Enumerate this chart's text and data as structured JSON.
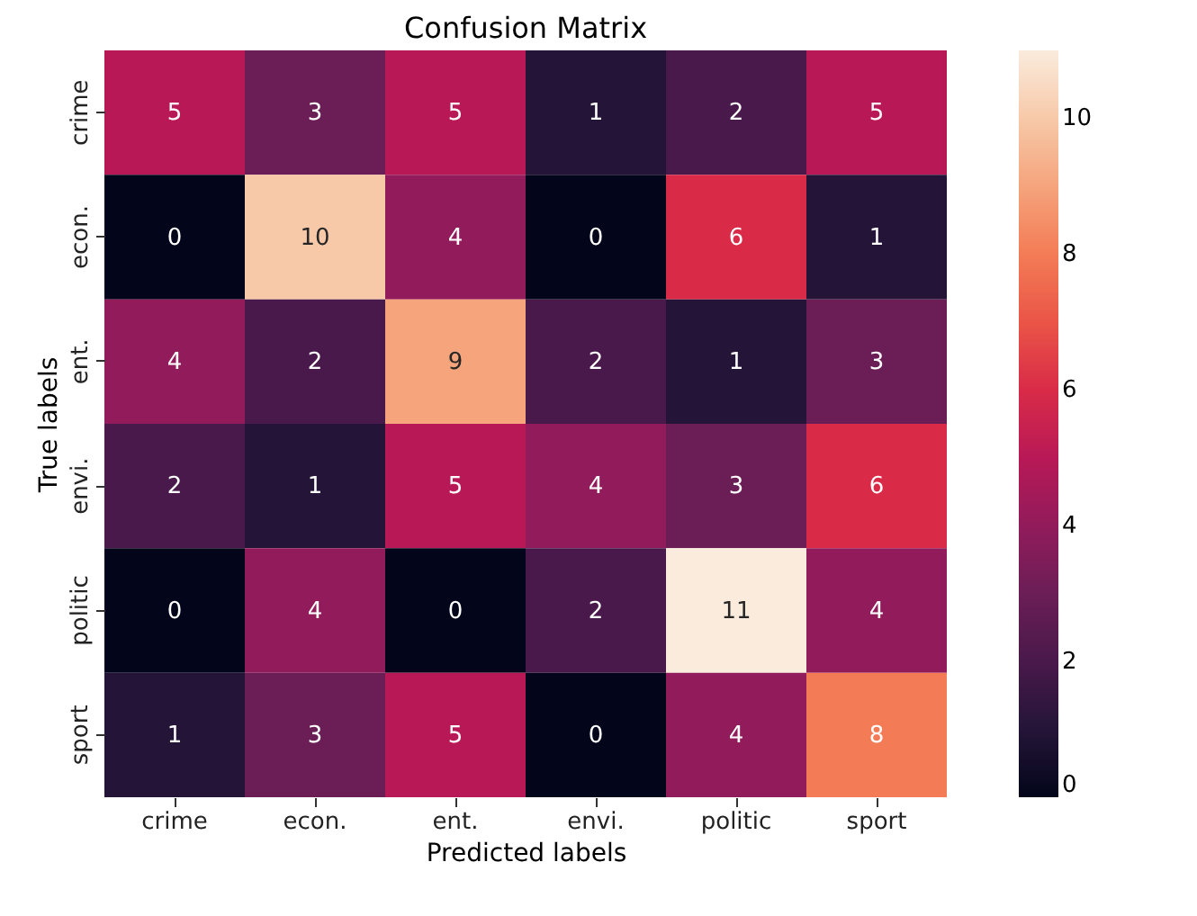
{
  "chart_data": {
    "type": "heatmap",
    "title": "Confusion Matrix",
    "xlabel": "Predicted labels",
    "ylabel": "True labels",
    "categories": [
      "crime",
      "econ.",
      "ent.",
      "envi.",
      "politic",
      "sport"
    ],
    "y_categories": [
      "crime",
      "econ.",
      "ent.",
      "envi.",
      "politic",
      "sport"
    ],
    "cells": [
      [
        5,
        3,
        5,
        1,
        2,
        5
      ],
      [
        0,
        10,
        4,
        0,
        6,
        1
      ],
      [
        4,
        2,
        9,
        2,
        1,
        3
      ],
      [
        2,
        1,
        5,
        4,
        3,
        6
      ],
      [
        0,
        4,
        0,
        2,
        11,
        4
      ],
      [
        1,
        3,
        5,
        0,
        4,
        8
      ]
    ],
    "clim": [
      0,
      11
    ],
    "cticks": [
      0,
      2,
      4,
      6,
      8,
      10
    ],
    "data_labels": true
  }
}
